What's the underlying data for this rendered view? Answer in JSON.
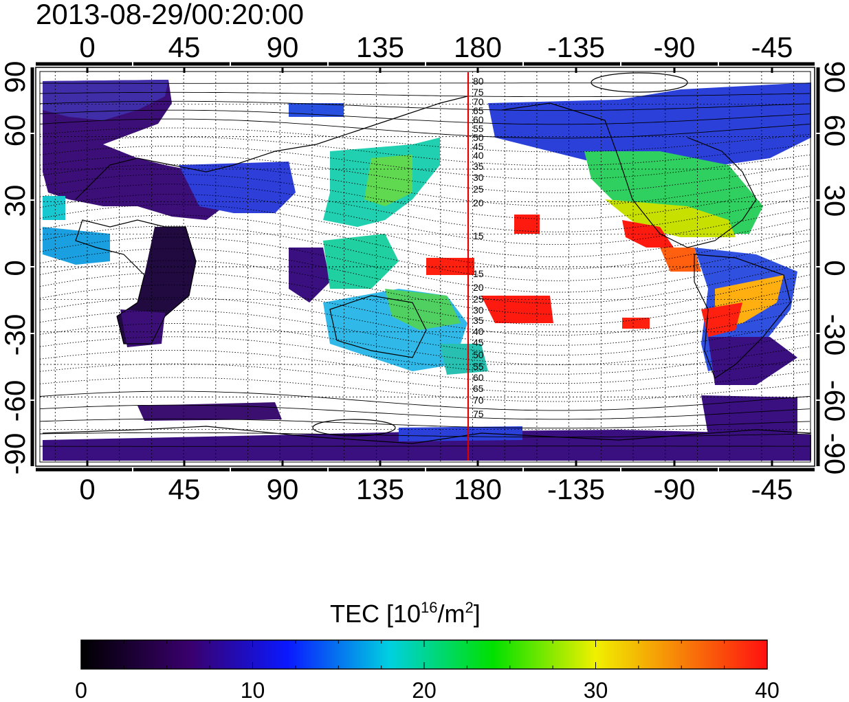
{
  "timestamp": "2013-08-29/00:20:00",
  "map": {
    "top_tick_labels": [
      "0",
      "45",
      "90",
      "135",
      "180",
      "-135",
      "-90",
      "-45"
    ],
    "bottom_tick_labels": [
      "0",
      "45",
      "90",
      "135",
      "180",
      "-135",
      "-90",
      "-45"
    ],
    "left_tick_labels": [
      "90",
      "60",
      "30",
      "0",
      "-30",
      "-60",
      "-90"
    ],
    "right_tick_labels": [
      "90",
      "60",
      "30",
      "0",
      "-30",
      "-60",
      "-90"
    ],
    "contour_labels": [
      "80",
      "75",
      "70",
      "65",
      "60",
      "55",
      "50",
      "45",
      "40",
      "35",
      "30",
      "25",
      "20",
      "15",
      "15",
      "20",
      "25",
      "30",
      "35",
      "40",
      "45",
      "50",
      "55",
      "60",
      "65",
      "70",
      "75"
    ],
    "meridian_line_color": "#e00000",
    "grid": true
  },
  "colorbar": {
    "title_main": "TEC  [10",
    "title_sup1": "16",
    "title_mid": "/m",
    "title_sup2": "2",
    "title_end": "]",
    "tick_labels": [
      "0",
      "10",
      "20",
      "30",
      "40"
    ],
    "range": [
      0,
      40
    ],
    "colors": [
      "#000000",
      "#3a006e",
      "#0a18ff",
      "#00d0e0",
      "#00e000",
      "#f0f000",
      "#ff1010"
    ]
  }
}
